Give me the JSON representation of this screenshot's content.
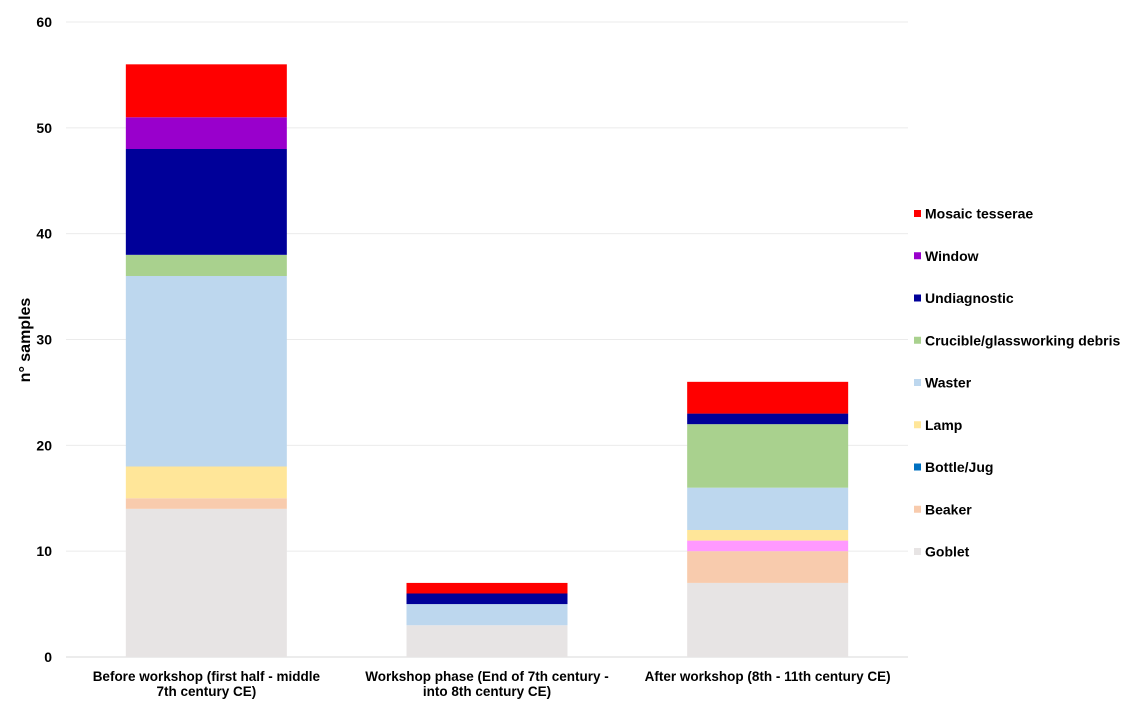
{
  "chart_data": {
    "type": "bar",
    "stacked": true,
    "title": "",
    "xlabel": "",
    "ylabel": "n° samples",
    "ylim": [
      0,
      60
    ],
    "yticks": [
      0,
      10,
      20,
      30,
      40,
      50,
      60
    ],
    "grid": true,
    "legend_position": "right",
    "categories": [
      [
        "Before workshop (first half - middle",
        "7th century CE)"
      ],
      [
        "Workshop phase (End of 7th century -",
        "into 8th century CE)"
      ],
      [
        "After workshop (8th - 11th century CE)"
      ]
    ],
    "series": [
      {
        "name": "Goblet",
        "color": "#E7E4E4",
        "values": [
          14,
          3,
          7
        ]
      },
      {
        "name": "Beaker",
        "color": "#F8CBAD",
        "values": [
          1,
          0,
          3
        ]
      },
      {
        "name": "",
        "color": "#FF99FF",
        "values": [
          0,
          0,
          1
        ]
      },
      {
        "name": "Bottle/Jug",
        "color": "#0070C0",
        "values": [
          0,
          0,
          0
        ]
      },
      {
        "name": "Lamp",
        "color": "#FFE699",
        "values": [
          3,
          0,
          1
        ]
      },
      {
        "name": "Waster",
        "color": "#BDD7EE",
        "values": [
          18,
          2,
          4
        ]
      },
      {
        "name": "Crucible/glassworking debris",
        "color": "#A9D18E",
        "values": [
          2,
          0,
          6
        ]
      },
      {
        "name": "Undiagnostic",
        "color": "#000099",
        "values": [
          10,
          1,
          1
        ]
      },
      {
        "name": "Window",
        "color": "#9900CC",
        "values": [
          3,
          0,
          0
        ]
      },
      {
        "name": "Mosaic tesserae",
        "color": "#FF0000",
        "values": [
          5,
          1,
          3
        ]
      }
    ],
    "legend_order": [
      "Mosaic tesserae",
      "Window",
      "Undiagnostic",
      "Crucible/glassworking debris",
      "Waster",
      "Lamp",
      "Bottle/Jug",
      "Beaker",
      "Goblet"
    ]
  }
}
